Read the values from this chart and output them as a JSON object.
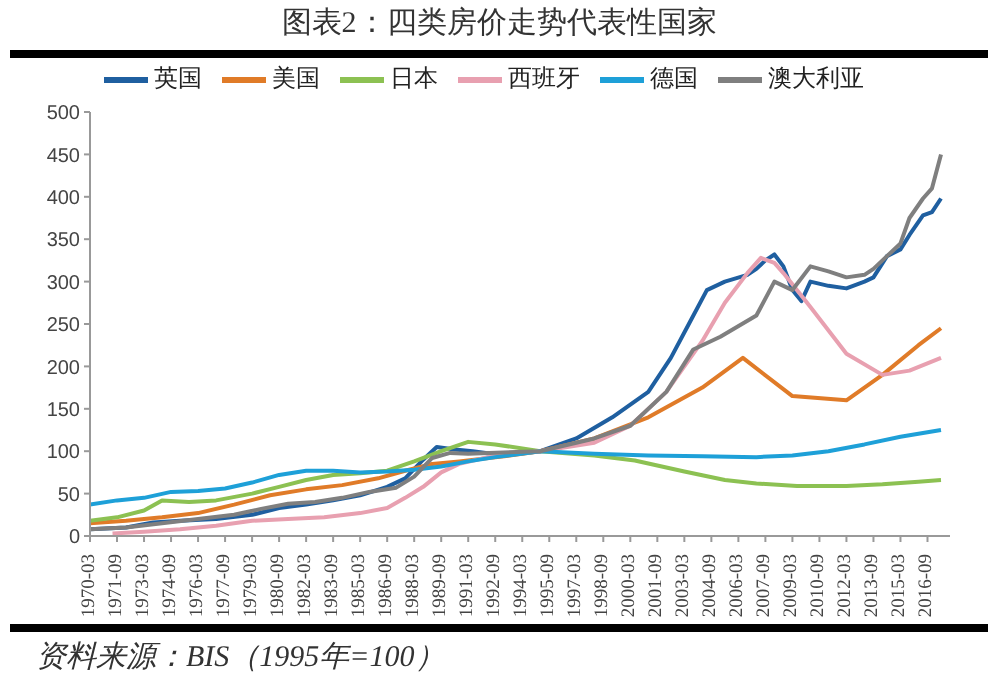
{
  "chart_data": {
    "type": "line",
    "title": "图表2：四类房价走势代表性国家",
    "annotations": [
      "资料来源：BIS（1995年=100）"
    ],
    "legend": "top",
    "grid": false,
    "marker": "none",
    "line_style": "solid",
    "ylim": [
      0,
      500
    ],
    "yticks": [
      0,
      50,
      100,
      150,
      200,
      250,
      300,
      350,
      400,
      450,
      500
    ],
    "xlim": [
      "1970-03",
      "2017-12"
    ],
    "xticks": [
      "1970-03",
      "1971-09",
      "1973-03",
      "1974-09",
      "1976-03",
      "1977-09",
      "1979-03",
      "1980-09",
      "1982-03",
      "1983-09",
      "1985-03",
      "1986-09",
      "1988-03",
      "1989-09",
      "1991-03",
      "1992-09",
      "1994-03",
      "1995-09",
      "1997-03",
      "1998-09",
      "2000-03",
      "2001-09",
      "2003-03",
      "2004-09",
      "2006-03",
      "2007-09",
      "2009-03",
      "2010-09",
      "2012-03",
      "2013-09",
      "2015-03",
      "2016-09"
    ],
    "series": [
      {
        "name": "英国",
        "color": "#1f5fa0",
        "x": [
          "1970-03",
          "1972-03",
          "1973-09",
          "1975-03",
          "1977-03",
          "1979-03",
          "1980-09",
          "1982-03",
          "1983-09",
          "1985-03",
          "1986-09",
          "1987-09",
          "1988-09",
          "1989-06",
          "1990-06",
          "1991-06",
          "1993-03",
          "1995-03",
          "1997-03",
          "1999-03",
          "2001-03",
          "2002-06",
          "2003-06",
          "2004-06",
          "2005-06",
          "2006-09",
          "2007-03",
          "2007-09",
          "2008-03",
          "2008-09",
          "2009-03",
          "2009-09",
          "2010-03",
          "2011-03",
          "2012-03",
          "2013-03",
          "2013-09",
          "2014-06",
          "2015-03",
          "2015-09",
          "2016-06",
          "2016-12",
          "2017-06"
        ],
        "values": [
          8,
          10,
          16,
          18,
          20,
          25,
          33,
          37,
          42,
          48,
          58,
          68,
          90,
          105,
          102,
          100,
          95,
          100,
          115,
          140,
          170,
          210,
          250,
          290,
          300,
          308,
          315,
          325,
          332,
          318,
          290,
          277,
          300,
          295,
          292,
          300,
          305,
          330,
          338,
          355,
          378,
          382,
          398
        ]
      },
      {
        "name": "美国",
        "color": "#e07b28",
        "x": [
          "1970-03",
          "1972-03",
          "1974-03",
          "1976-03",
          "1978-03",
          "1980-03",
          "1982-03",
          "1984-03",
          "1986-03",
          "1987-09",
          "1989-03",
          "1990-09",
          "1993-03",
          "1995-03",
          "1998-03",
          "2001-03",
          "2004-03",
          "2006-06",
          "2009-03",
          "2012-03",
          "2014-03",
          "2016-03",
          "2017-06"
        ],
        "values": [
          15,
          18,
          22,
          27,
          37,
          48,
          55,
          60,
          68,
          77,
          85,
          88,
          94,
          100,
          115,
          140,
          175,
          210,
          165,
          160,
          190,
          225,
          245
        ]
      },
      {
        "name": "日本",
        "color": "#8cc152",
        "x": [
          "1970-03",
          "1971-09",
          "1973-03",
          "1974-03",
          "1975-09",
          "1977-03",
          "1979-03",
          "1980-09",
          "1982-03",
          "1983-09",
          "1985-03",
          "1986-09",
          "1988-03",
          "1989-09",
          "1991-03",
          "1992-09",
          "1995-03",
          "1998-03",
          "2000-06",
          "2003-03",
          "2005-06",
          "2007-03",
          "2009-06",
          "2012-03",
          "2014-03",
          "2016-03",
          "2017-06"
        ],
        "values": [
          18,
          22,
          30,
          42,
          40,
          42,
          50,
          58,
          66,
          72,
          74,
          77,
          88,
          100,
          111,
          108,
          100,
          95,
          89,
          76,
          66,
          62,
          59,
          59,
          61,
          64,
          66
        ]
      },
      {
        "name": "西班牙",
        "color": "#e8a0b0",
        "x": [
          "1971-06",
          "1973-03",
          "1975-03",
          "1977-03",
          "1979-03",
          "1981-03",
          "1983-03",
          "1985-03",
          "1986-09",
          "1987-09",
          "1988-09",
          "1989-09",
          "1990-09",
          "1992-09",
          "1995-03",
          "1998-03",
          "2000-03",
          "2002-03",
          "2004-03",
          "2005-06",
          "2006-09",
          "2007-06",
          "2008-03",
          "2008-09",
          "2010-03",
          "2012-03",
          "2014-03",
          "2015-09",
          "2017-06"
        ],
        "values": [
          3,
          5,
          8,
          12,
          18,
          20,
          22,
          27,
          33,
          45,
          58,
          75,
          85,
          95,
          100,
          110,
          130,
          170,
          230,
          275,
          310,
          328,
          322,
          310,
          270,
          215,
          190,
          195,
          210
        ]
      },
      {
        "name": "德国",
        "color": "#1ea0d8",
        "x": [
          "1970-03",
          "1971-09",
          "1973-03",
          "1974-09",
          "1976-03",
          "1977-09",
          "1979-03",
          "1980-09",
          "1982-03",
          "1983-09",
          "1985-03",
          "1986-09",
          "1988-03",
          "1989-09",
          "1991-03",
          "1992-09",
          "1995-03",
          "1998-03",
          "2001-03",
          "2004-03",
          "2007-03",
          "2009-03",
          "2011-03",
          "2013-03",
          "2015-03",
          "2017-06"
        ],
        "values": [
          37,
          42,
          45,
          52,
          53,
          56,
          63,
          72,
          77,
          77,
          75,
          76,
          78,
          82,
          88,
          93,
          100,
          97,
          95,
          94,
          93,
          95,
          100,
          108,
          117,
          125
        ]
      },
      {
        "name": "澳大利亚",
        "color": "#7f7f7f",
        "x": [
          "1970-03",
          "1972-03",
          "1974-03",
          "1976-03",
          "1978-03",
          "1979-09",
          "1981-03",
          "1982-09",
          "1984-03",
          "1985-09",
          "1987-03",
          "1988-03",
          "1989-03",
          "1990-03",
          "1991-03",
          "1995-03",
          "1998-03",
          "2000-03",
          "2002-03",
          "2003-09",
          "2005-03",
          "2007-03",
          "2008-03",
          "2009-03",
          "2010-03",
          "2011-03",
          "2012-03",
          "2013-03",
          "2013-09",
          "2014-06",
          "2015-03",
          "2015-09",
          "2016-06",
          "2016-12",
          "2017-06"
        ],
        "values": [
          8,
          10,
          15,
          20,
          25,
          32,
          38,
          40,
          45,
          52,
          57,
          70,
          92,
          98,
          97,
          100,
          115,
          130,
          170,
          220,
          235,
          260,
          300,
          290,
          318,
          312,
          305,
          308,
          315,
          330,
          345,
          375,
          398,
          410,
          450
        ]
      }
    ]
  }
}
